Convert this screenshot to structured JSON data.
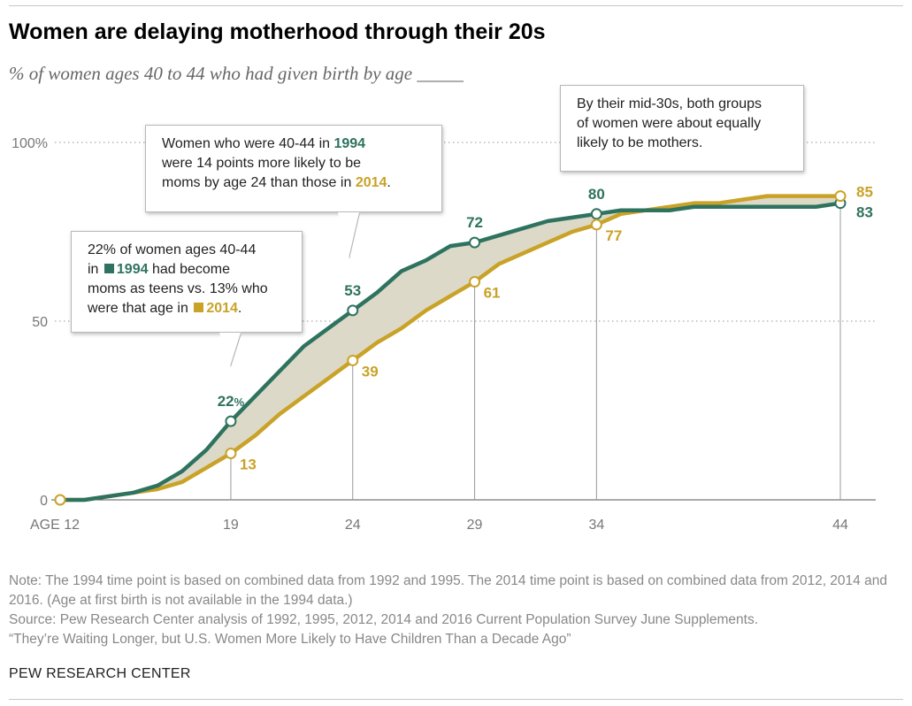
{
  "title": "Women are delaying motherhood through their 20s",
  "subtitle": "% of women ages 40 to 44 who had given birth by age _____",
  "chart_data": {
    "type": "line",
    "xlim": [
      12,
      44
    ],
    "ylim": [
      0,
      100
    ],
    "y_ticks": [
      {
        "value": 0,
        "label": "0"
      },
      {
        "value": 50,
        "label": "50"
      },
      {
        "value": 100,
        "label": "100%"
      }
    ],
    "x_ticks": [
      {
        "value": 12,
        "label": "AGE 12"
      },
      {
        "value": 19,
        "label": "19"
      },
      {
        "value": 24,
        "label": "24"
      },
      {
        "value": 29,
        "label": "29"
      },
      {
        "value": 34,
        "label": "34"
      },
      {
        "value": 44,
        "label": "44"
      }
    ],
    "grid": "horizontal-dotted",
    "series": [
      {
        "name": "1994",
        "color": "#2e735f",
        "x": [
          12,
          13,
          14,
          15,
          16,
          17,
          18,
          19,
          20,
          21,
          22,
          23,
          24,
          25,
          26,
          27,
          28,
          29,
          30,
          31,
          32,
          33,
          34,
          35,
          36,
          37,
          38,
          39,
          40,
          41,
          42,
          43,
          44
        ],
        "y": [
          0,
          0,
          1,
          2,
          4,
          8,
          14,
          22,
          29,
          36,
          43,
          48,
          53,
          58,
          64,
          67,
          71,
          72,
          74,
          76,
          78,
          79,
          80,
          81,
          81,
          81,
          82,
          82,
          82,
          82,
          82,
          82,
          83
        ]
      },
      {
        "name": "2014",
        "color": "#c9a227",
        "x": [
          12,
          13,
          14,
          15,
          16,
          17,
          18,
          19,
          20,
          21,
          22,
          23,
          24,
          25,
          26,
          27,
          28,
          29,
          30,
          31,
          32,
          33,
          34,
          35,
          36,
          37,
          38,
          39,
          40,
          41,
          42,
          43,
          44
        ],
        "y": [
          0,
          0,
          1,
          2,
          3,
          5,
          9,
          13,
          18,
          24,
          29,
          34,
          39,
          44,
          48,
          53,
          57,
          61,
          66,
          69,
          72,
          75,
          77,
          80,
          81,
          82,
          83,
          83,
          84,
          85,
          85,
          85,
          85
        ]
      }
    ],
    "labeled_points": [
      {
        "series": "1994",
        "x": 19,
        "y": 22,
        "label": "22",
        "suffix": "%"
      },
      {
        "series": "1994",
        "x": 24,
        "y": 53,
        "label": "53"
      },
      {
        "series": "1994",
        "x": 29,
        "y": 72,
        "label": "72"
      },
      {
        "series": "1994",
        "x": 34,
        "y": 80,
        "label": "80"
      },
      {
        "series": "1994",
        "x": 44,
        "y": 83,
        "label": "83"
      },
      {
        "series": "2014",
        "x": 12,
        "y": 0,
        "label": ""
      },
      {
        "series": "2014",
        "x": 19,
        "y": 13,
        "label": "13"
      },
      {
        "series": "2014",
        "x": 24,
        "y": 39,
        "label": "39"
      },
      {
        "series": "2014",
        "x": 29,
        "y": 61,
        "label": "61"
      },
      {
        "series": "2014",
        "x": 34,
        "y": 77,
        "label": "77"
      },
      {
        "series": "2014",
        "x": 44,
        "y": 85,
        "label": "85"
      }
    ],
    "shade_between_series": true,
    "shade_color": "#ddd9c8"
  },
  "annotations": {
    "teens": {
      "t1": "22% of women ages 40-44",
      "t2": "in",
      "y94": "1994",
      "t3": "had become",
      "t4": "moms as teens vs. 13% who",
      "t5": "were that age in",
      "y14": "2014",
      "t6": "."
    },
    "age24": {
      "t1": "Women who were 40-44 in",
      "y94": "1994",
      "t2": "were 14 points more likely to be",
      "t3": "moms by age 24 than those in",
      "y14": "2014",
      "t4": "."
    },
    "mid30s": {
      "l1": "By their mid-30s, both groups",
      "l2": "of women were about equally",
      "l3": "likely to be mothers."
    }
  },
  "footer": {
    "note": "Note: The 1994 time point is based on combined data from 1992 and 1995. The 2014 time point is based on combined data from 2012, 2014 and 2016. (Age at first birth is not available in the 1994 data.)",
    "source": "Source: Pew Research Center analysis of 1992, 1995, 2012, 2014 and 2016 Current Population Survey June Supplements.",
    "report": "“They’re Waiting Longer, but U.S. Women More Likely to Have Children Than a Decade Ago”",
    "brand": "PEW RESEARCH CENTER"
  }
}
